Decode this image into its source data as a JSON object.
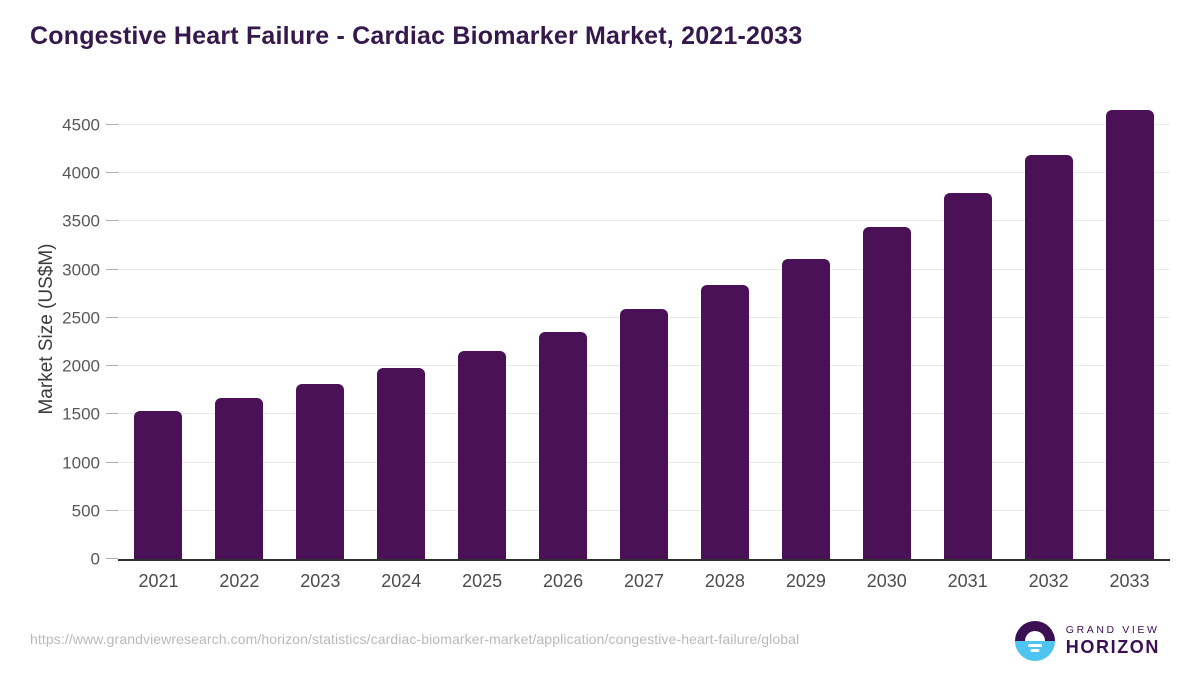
{
  "title": "Congestive Heart Failure - Cardiac Biomarker Market, 2021-2033",
  "chart_data": {
    "type": "bar",
    "title": "Congestive Heart Failure - Cardiac Biomarker Market, 2021-2033",
    "categories": [
      "2021",
      "2022",
      "2023",
      "2024",
      "2025",
      "2026",
      "2027",
      "2028",
      "2029",
      "2030",
      "2031",
      "2032",
      "2033"
    ],
    "values": [
      1540,
      1670,
      1810,
      1980,
      2160,
      2355,
      2590,
      2840,
      3115,
      3440,
      3795,
      4190,
      4655
    ],
    "xlabel": "",
    "ylabel": "Market Size (US$M)",
    "ylim": [
      0,
      4770
    ],
    "yticks": [
      0,
      500,
      1000,
      1500,
      2000,
      2500,
      3000,
      3500,
      4000,
      4500
    ],
    "grid": true,
    "legend": "none",
    "bar_color": "#4a1157"
  },
  "colors": {
    "title": "#35194d",
    "bar": "#4a1157",
    "gridline": "#e9e9e9",
    "axis_line": "#2e2e2e",
    "logo_purple": "#3a1053",
    "logo_blue": "#4ec4f0"
  },
  "footer": {
    "source_url": "https://www.grandviewresearch.com/horizon/statistics/cardiac-biomarker-market/application/congestive-heart-failure/global",
    "logo": {
      "line1": "GRAND VIEW",
      "line2": "HORIZON"
    }
  }
}
